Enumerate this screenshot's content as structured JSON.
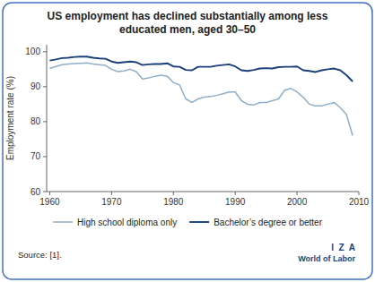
{
  "chart_data": {
    "type": "line",
    "title": "US employment has declined substantially among less\neducated men, aged 30–50",
    "y_label": "Employment rate (%)",
    "source": "Source: [1].",
    "annotations": [
      "I  Z  A",
      "World of Labor"
    ],
    "x": [
      1960,
      1961,
      1962,
      1963,
      1964,
      1965,
      1966,
      1967,
      1968,
      1969,
      1970,
      1971,
      1972,
      1973,
      1974,
      1975,
      1976,
      1977,
      1978,
      1979,
      1980,
      1981,
      1982,
      1983,
      1984,
      1985,
      1986,
      1987,
      1988,
      1989,
      1990,
      1991,
      1992,
      1993,
      1994,
      1995,
      1996,
      1997,
      1998,
      1999,
      2000,
      2001,
      2002,
      2003,
      2004,
      2005,
      2006,
      2007,
      2008,
      2009
    ],
    "series": [
      {
        "name": "High school diploma only",
        "color": "#8faec8",
        "values": [
          95.2,
          95.8,
          96.3,
          96.5,
          96.6,
          96.7,
          96.8,
          96.5,
          96.3,
          96.1,
          95.0,
          94.3,
          94.5,
          95.0,
          94.3,
          92.2,
          92.5,
          93.0,
          93.3,
          93.0,
          91.2,
          90.5,
          86.5,
          85.5,
          86.5,
          87.0,
          87.2,
          87.5,
          88.0,
          88.5,
          88.5,
          86.0,
          85.0,
          84.8,
          85.5,
          85.5,
          86.0,
          86.5,
          89.0,
          89.5,
          88.5,
          87.0,
          85.0,
          84.5,
          84.5,
          85.0,
          85.5,
          84.0,
          82.0,
          76.0
        ]
      },
      {
        "name": "Bachelor’s degree or better",
        "color": "#1a3f7a",
        "values": [
          97.5,
          97.8,
          98.2,
          98.3,
          98.5,
          98.6,
          98.6,
          98.3,
          98.1,
          98.0,
          97.2,
          96.8,
          97.0,
          97.2,
          97.0,
          96.2,
          96.4,
          96.5,
          96.5,
          96.7,
          95.8,
          95.7,
          94.8,
          94.7,
          95.7,
          95.7,
          95.7,
          96.0,
          96.2,
          96.4,
          95.8,
          94.7,
          94.5,
          94.8,
          95.2,
          95.3,
          95.2,
          95.6,
          95.7,
          95.7,
          95.8,
          94.7,
          94.5,
          94.2,
          94.7,
          95.0,
          95.2,
          94.7,
          93.3,
          91.5
        ]
      }
    ],
    "xlim": [
      1959.5,
      2010
    ],
    "ylim": [
      60,
      102
    ],
    "xticks": [
      1960,
      1970,
      1980,
      1990,
      2000,
      2010
    ],
    "yticks": [
      60,
      70,
      80,
      90,
      100
    ],
    "grid": false,
    "legend": "bottom"
  }
}
